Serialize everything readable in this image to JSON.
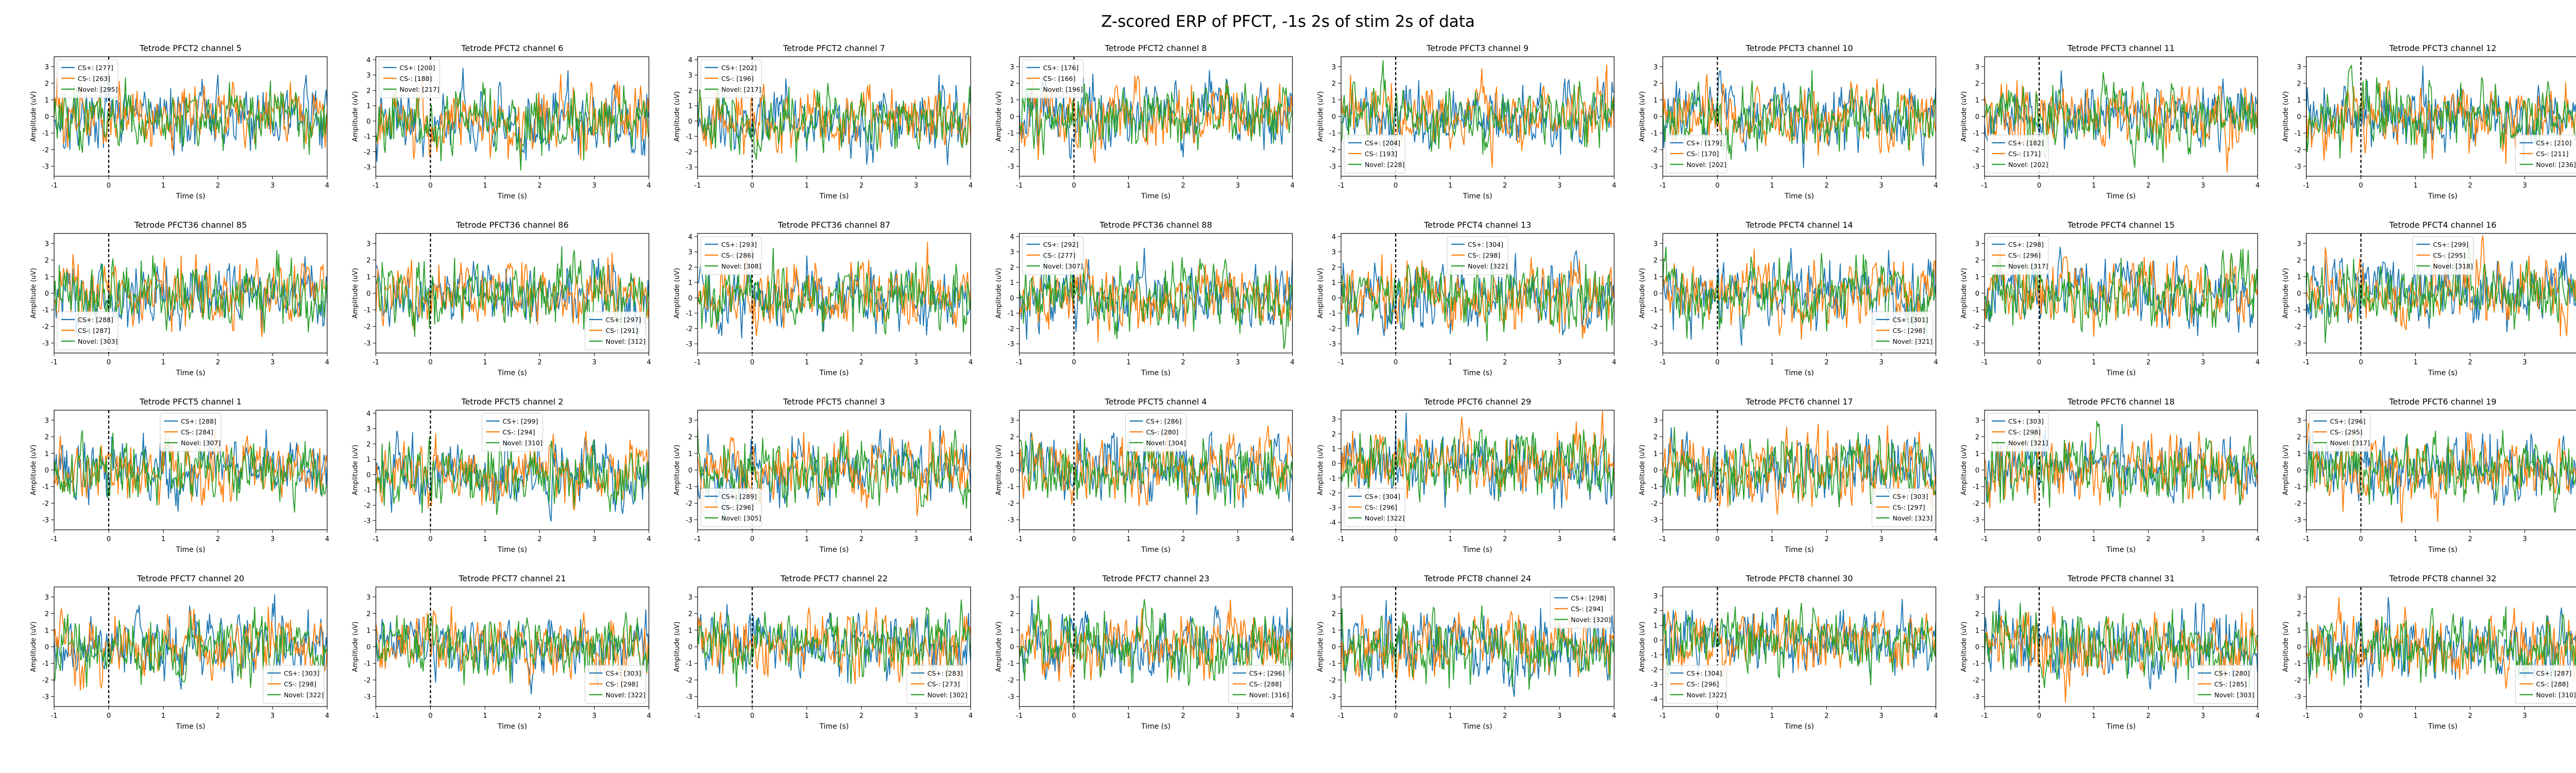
{
  "title": "Z-scored ERP of PFCT, -1s 2s of stim 2s of data",
  "colors": {
    "cs_plus": "#1f77b4",
    "cs_minus": "#ff7f0e",
    "novel": "#2ca02c",
    "stim_line": "#000000"
  },
  "chart_data": {
    "type": "line",
    "grid": false,
    "shared_xlabel": "Time (s)",
    "shared_ylabel": "Amplitude (uV)",
    "x_range": [
      -1,
      4
    ],
    "x_ticks": [
      -1,
      0,
      1,
      2,
      3,
      4
    ],
    "stim_marker_x": 0,
    "series_names": [
      "CS+",
      "CS-",
      "Novel"
    ],
    "panels": [
      {
        "title": "Tetrode PFCT2 channel 5",
        "ylim": [
          -3.6,
          3.6
        ],
        "yticks": [
          -3,
          -2,
          -1,
          0,
          1,
          2,
          3
        ],
        "legend_loc": "upper left",
        "legend": [
          "CS+: [277]",
          "CS-: [263]",
          "Novel: [295]"
        ]
      },
      {
        "title": "Tetrode PFCT2 channel 6",
        "ylim": [
          -3.6,
          4.2
        ],
        "yticks": [
          -3,
          -2,
          -1,
          0,
          1,
          2,
          3,
          4
        ],
        "legend_loc": "upper left",
        "legend": [
          "CS+: [200]",
          "CS-: [188]",
          "Novel: [217]"
        ]
      },
      {
        "title": "Tetrode PFCT2 channel 7",
        "ylim": [
          -3.6,
          4.2
        ],
        "yticks": [
          -3,
          -2,
          -1,
          0,
          1,
          2,
          3,
          4
        ],
        "legend_loc": "upper left",
        "legend": [
          "CS+: [202]",
          "CS-: [196]",
          "Novel: [217]"
        ]
      },
      {
        "title": "Tetrode PFCT2 channel 8",
        "ylim": [
          -3.6,
          3.6
        ],
        "yticks": [
          -3,
          -2,
          -1,
          0,
          1,
          2,
          3
        ],
        "legend_loc": "upper left",
        "legend": [
          "CS+: [176]",
          "CS-: [166]",
          "Novel: [196]"
        ]
      },
      {
        "title": "Tetrode PFCT3 channel 9",
        "ylim": [
          -3.6,
          3.6
        ],
        "yticks": [
          -3,
          -2,
          -1,
          0,
          1,
          2,
          3
        ],
        "legend_loc": "lower left",
        "legend": [
          "CS+: [204]",
          "CS-: [193]",
          "Novel: [228]"
        ]
      },
      {
        "title": "Tetrode PFCT3 channel 10",
        "ylim": [
          -3.6,
          3.6
        ],
        "yticks": [
          -3,
          -2,
          -1,
          0,
          1,
          2,
          3
        ],
        "legend_loc": "lower left",
        "legend": [
          "CS+: [179]",
          "CS-: [170]",
          "Novel: [202]"
        ]
      },
      {
        "title": "Tetrode PFCT3 channel 11",
        "ylim": [
          -3.6,
          3.6
        ],
        "yticks": [
          -3,
          -2,
          -1,
          0,
          1,
          2,
          3
        ],
        "legend_loc": "lower left",
        "legend": [
          "CS+: [182]",
          "CS-: [171]",
          "Novel: [202]"
        ]
      },
      {
        "title": "Tetrode PFCT3 channel 12",
        "ylim": [
          -3.6,
          3.6
        ],
        "yticks": [
          -3,
          -2,
          -1,
          0,
          1,
          2,
          3
        ],
        "legend_loc": "lower right",
        "legend": [
          "CS+: [210]",
          "CS-: [211]",
          "Novel: [236]"
        ]
      },
      {
        "title": "Tetrode PFCT36 channel 85",
        "ylim": [
          -3.6,
          3.6
        ],
        "yticks": [
          -3,
          -2,
          -1,
          0,
          1,
          2,
          3
        ],
        "legend_loc": "lower left",
        "legend": [
          "CS+: [288]",
          "CS-: [287]",
          "Novel: [303]"
        ]
      },
      {
        "title": "Tetrode PFCT36 channel 86",
        "ylim": [
          -3.6,
          3.6
        ],
        "yticks": [
          -3,
          -2,
          -1,
          0,
          1,
          2,
          3
        ],
        "legend_loc": "lower right",
        "legend": [
          "CS+: [297]",
          "CS-: [291]",
          "Novel: [312]"
        ]
      },
      {
        "title": "Tetrode PFCT36 channel 87",
        "ylim": [
          -3.6,
          4.2
        ],
        "yticks": [
          -3,
          -2,
          -1,
          0,
          1,
          2,
          3,
          4
        ],
        "legend_loc": "upper left",
        "legend": [
          "CS+: [293]",
          "CS-: [286]",
          "Novel: [308]"
        ]
      },
      {
        "title": "Tetrode PFCT36 channel 88",
        "ylim": [
          -3.6,
          4.2
        ],
        "yticks": [
          -3,
          -2,
          -1,
          0,
          1,
          2,
          3,
          4
        ],
        "legend_loc": "upper left",
        "legend": [
          "CS+: [292]",
          "CS-: [277]",
          "Novel: [307]"
        ]
      },
      {
        "title": "Tetrode PFCT4 channel 13",
        "ylim": [
          -3.6,
          4.2
        ],
        "yticks": [
          -3,
          -2,
          -1,
          0,
          1,
          2,
          3,
          4
        ],
        "legend_loc": "upper center",
        "legend": [
          "CS+: [304]",
          "CS-: [298]",
          "Novel: [322]"
        ]
      },
      {
        "title": "Tetrode PFCT4 channel 14",
        "ylim": [
          -3.6,
          3.6
        ],
        "yticks": [
          -3,
          -2,
          -1,
          0,
          1,
          2,
          3
        ],
        "legend_loc": "lower right",
        "legend": [
          "CS+: [301]",
          "CS-: [298]",
          "Novel: [321]"
        ]
      },
      {
        "title": "Tetrode PFCT4 channel 15",
        "ylim": [
          -3.6,
          3.6
        ],
        "yticks": [
          -3,
          -2,
          -1,
          0,
          1,
          2,
          3
        ],
        "legend_loc": "upper left",
        "legend": [
          "CS+: [298]",
          "CS-: [296]",
          "Novel: [317]"
        ]
      },
      {
        "title": "Tetrode PFCT4 channel 16",
        "ylim": [
          -3.6,
          3.6
        ],
        "yticks": [
          -3,
          -2,
          -1,
          0,
          1,
          2,
          3
        ],
        "legend_loc": "upper center",
        "legend": [
          "CS+: [299]",
          "CS-: [295]",
          "Novel: [318]"
        ]
      },
      {
        "title": "Tetrode PFCT5 channel 1",
        "ylim": [
          -3.6,
          3.6
        ],
        "yticks": [
          -3,
          -2,
          -1,
          0,
          1,
          2,
          3
        ],
        "legend_loc": "upper center",
        "legend": [
          "CS+: [288]",
          "CS-: [284]",
          "Novel: [307]"
        ]
      },
      {
        "title": "Tetrode PFCT5 channel 2",
        "ylim": [
          -3.6,
          4.2
        ],
        "yticks": [
          -3,
          -2,
          -1,
          0,
          1,
          2,
          3,
          4
        ],
        "legend_loc": "upper center",
        "legend": [
          "CS+: [299]",
          "CS-: [294]",
          "Novel: [310]"
        ]
      },
      {
        "title": "Tetrode PFCT5 channel 3",
        "ylim": [
          -3.6,
          3.6
        ],
        "yticks": [
          -3,
          -2,
          -1,
          0,
          1,
          2,
          3
        ],
        "legend_loc": "lower left",
        "legend": [
          "CS+: [289]",
          "CS-: [296]",
          "Novel: [305]"
        ]
      },
      {
        "title": "Tetrode PFCT5 channel 4",
        "ylim": [
          -3.6,
          3.6
        ],
        "yticks": [
          -3,
          -2,
          -1,
          0,
          1,
          2,
          3
        ],
        "legend_loc": "upper center",
        "legend": [
          "CS+: [286]",
          "CS-: [280]",
          "Novel: [304]"
        ]
      },
      {
        "title": "Tetrode PFCT6 channel 29",
        "ylim": [
          -4.5,
          3.6
        ],
        "yticks": [
          -4,
          -3,
          -2,
          -1,
          0,
          1,
          2,
          3
        ],
        "legend_loc": "lower left",
        "legend": [
          "CS+: [304]",
          "CS-: [296]",
          "Novel: [322]"
        ]
      },
      {
        "title": "Tetrode PFCT6 channel 17",
        "ylim": [
          -3.6,
          3.6
        ],
        "yticks": [
          -3,
          -2,
          -1,
          0,
          1,
          2,
          3
        ],
        "legend_loc": "lower right",
        "legend": [
          "CS+: [303]",
          "CS-: [297]",
          "Novel: [323]"
        ]
      },
      {
        "title": "Tetrode PFCT6 channel 18",
        "ylim": [
          -3.6,
          3.6
        ],
        "yticks": [
          -3,
          -2,
          -1,
          0,
          1,
          2,
          3
        ],
        "legend_loc": "upper left",
        "legend": [
          "CS+: [303]",
          "CS-: [298]",
          "Novel: [321]"
        ]
      },
      {
        "title": "Tetrode PFCT6 channel 19",
        "ylim": [
          -3.6,
          3.6
        ],
        "yticks": [
          -3,
          -2,
          -1,
          0,
          1,
          2,
          3
        ],
        "legend_loc": "upper left",
        "legend": [
          "CS+: [296]",
          "CS-: [295]",
          "Novel: [317]"
        ]
      },
      {
        "title": "Tetrode PFCT7 channel 20",
        "ylim": [
          -3.6,
          3.6
        ],
        "yticks": [
          -3,
          -2,
          -1,
          0,
          1,
          2,
          3
        ],
        "legend_loc": "lower right",
        "legend": [
          "CS+: [303]",
          "CS-: [298]",
          "Novel: [322]"
        ]
      },
      {
        "title": "Tetrode PFCT7 channel 21",
        "ylim": [
          -3.6,
          3.6
        ],
        "yticks": [
          -3,
          -2,
          -1,
          0,
          1,
          2,
          3
        ],
        "legend_loc": "lower right",
        "legend": [
          "CS+: [303]",
          "CS-: [298]",
          "Novel: [322]"
        ]
      },
      {
        "title": "Tetrode PFCT7 channel 22",
        "ylim": [
          -3.6,
          3.6
        ],
        "yticks": [
          -3,
          -2,
          -1,
          0,
          1,
          2,
          3
        ],
        "legend_loc": "lower right",
        "legend": [
          "CS+: [283]",
          "CS-: [273]",
          "Novel: [302]"
        ]
      },
      {
        "title": "Tetrode PFCT7 channel 23",
        "ylim": [
          -3.6,
          3.6
        ],
        "yticks": [
          -3,
          -2,
          -1,
          0,
          1,
          2,
          3
        ],
        "legend_loc": "lower right",
        "legend": [
          "CS+: [296]",
          "CS-: [288]",
          "Novel: [316]"
        ]
      },
      {
        "title": "Tetrode PFCT8 channel 24",
        "ylim": [
          -3.6,
          3.6
        ],
        "yticks": [
          -3,
          -2,
          -1,
          0,
          1,
          2,
          3
        ],
        "legend_loc": "upper right",
        "legend": [
          "CS+: [298]",
          "CS-: [294]",
          "Novel: [320]"
        ]
      },
      {
        "title": "Tetrode PFCT8 channel 30",
        "ylim": [
          -4.5,
          3.6
        ],
        "yticks": [
          -4,
          -3,
          -2,
          -1,
          0,
          1,
          2,
          3
        ],
        "legend_loc": "lower left",
        "legend": [
          "CS+: [304]",
          "CS-: [296]",
          "Novel: [322]"
        ]
      },
      {
        "title": "Tetrode PFCT8 channel 31",
        "ylim": [
          -3.6,
          3.6
        ],
        "yticks": [
          -3,
          -2,
          -1,
          0,
          1,
          2,
          3
        ],
        "legend_loc": "lower right",
        "legend": [
          "CS+: [280]",
          "CS-: [285]",
          "Novel: [303]"
        ]
      },
      {
        "title": "Tetrode PFCT8 channel 32",
        "ylim": [
          -3.6,
          3.6
        ],
        "yticks": [
          -3,
          -2,
          -1,
          0,
          1,
          2,
          3
        ],
        "legend_loc": "lower right",
        "legend": [
          "CS+: [287]",
          "CS-: [288]",
          "Novel: [310]"
        ]
      }
    ]
  }
}
